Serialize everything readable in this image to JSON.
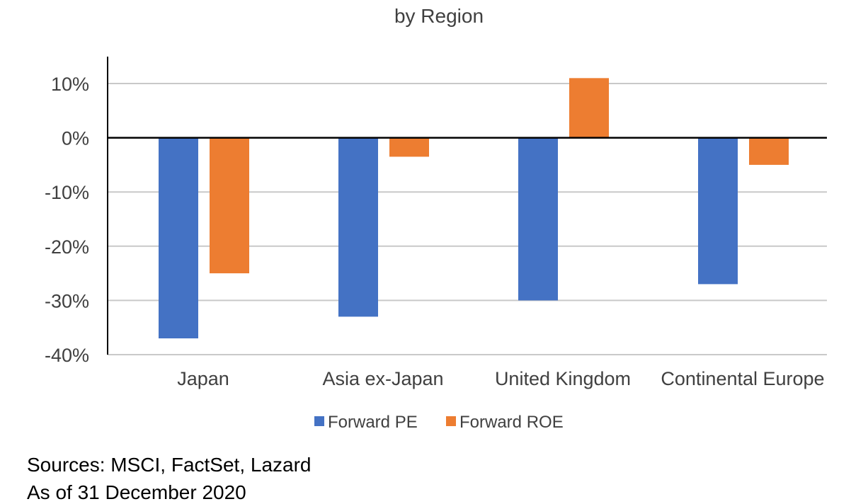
{
  "chart_data": {
    "type": "bar",
    "title": "by Region",
    "categories": [
      "Japan",
      "Asia ex-Japan",
      "United Kingdom",
      "Continental Europe"
    ],
    "series": [
      {
        "name": "Forward PE",
        "color": "#4472C4",
        "values": [
          -37,
          -33,
          -30,
          -27
        ]
      },
      {
        "name": "Forward ROE",
        "color": "#ED7D31",
        "values": [
          -25,
          -3.5,
          11,
          -5
        ]
      }
    ],
    "ylim": [
      -40,
      10
    ],
    "y_ticks": [
      10,
      0,
      -10,
      -20,
      -30,
      -40
    ],
    "y_tick_labels": [
      "10%",
      "0%",
      "-10%",
      "-20%",
      "-30%",
      "-40%"
    ],
    "grid": true,
    "legend_position": "bottom"
  },
  "footer": {
    "sources": "Sources:  MSCI, FactSet, Lazard",
    "as_of": "As of 31 December 2020"
  }
}
